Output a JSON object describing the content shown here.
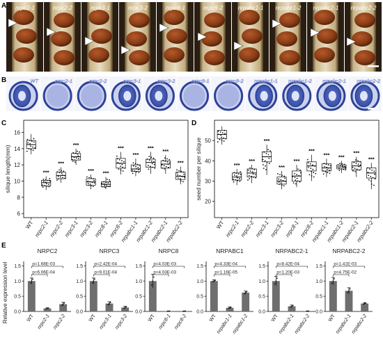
{
  "panel_labels": [
    "A",
    "B",
    "C",
    "D",
    "E"
  ],
  "panelA": {
    "labels": [
      "nrpc2-1",
      "nrpc2-2",
      "nrpc3-1",
      "nrpc3-2",
      "nrpc8-1",
      "nrpc8-2",
      "nrpabc1-1",
      "nrpabc1-2",
      "nrpabc2-1",
      "nrpabc2-2"
    ]
  },
  "panelB": {
    "labels": [
      "WT",
      "nrpc2-1",
      "nrpc2-2",
      "nrpc3-1",
      "nrpc3-2",
      "nrpc8-1",
      "nrpc8-2",
      "nrpabc1-1",
      "nrpabc1-2",
      "nrpabc2-1",
      "nrpabc2-2"
    ]
  },
  "chart_data": [
    {
      "panel": "C",
      "type": "box",
      "ylabel": "silique length(mm)",
      "ylim": [
        5.5,
        17.5
      ],
      "yticks": [
        6,
        8,
        10,
        12,
        14,
        16
      ],
      "categories": [
        "WT",
        "nrpc2-1",
        "nrpc2-2",
        "nrpc3-1",
        "nrpc3-2",
        "nrpc8-1",
        "nrpc8-2",
        "nrpabc1-1",
        "nrpabc1-2",
        "nrpabc2-1",
        "nrpabc2-2"
      ],
      "boxes": [
        {
          "min": 13.3,
          "q1": 14.0,
          "median": 14.5,
          "q3": 15.0,
          "max": 15.8
        },
        {
          "min": 8.9,
          "q1": 9.4,
          "median": 9.8,
          "q3": 10.1,
          "max": 10.6
        },
        {
          "min": 9.8,
          "q1": 10.3,
          "median": 10.7,
          "q3": 11.1,
          "max": 11.7
        },
        {
          "min": 12.0,
          "q1": 12.6,
          "median": 13.0,
          "q3": 13.4,
          "max": 14.0
        },
        {
          "min": 9.0,
          "q1": 9.5,
          "median": 9.9,
          "q3": 10.3,
          "max": 10.8
        },
        {
          "min": 9.0,
          "q1": 9.3,
          "median": 9.6,
          "q3": 9.9,
          "max": 10.5
        },
        {
          "min": 10.8,
          "q1": 11.6,
          "median": 12.2,
          "q3": 12.8,
          "max": 13.6
        },
        {
          "min": 10.6,
          "q1": 11.2,
          "median": 11.5,
          "q3": 12.0,
          "max": 12.8
        },
        {
          "min": 10.9,
          "q1": 11.7,
          "median": 12.3,
          "q3": 12.7,
          "max": 13.6
        },
        {
          "min": 10.9,
          "q1": 11.6,
          "median": 12.1,
          "q3": 12.5,
          "max": 13.2
        },
        {
          "min": 9.6,
          "q1": 10.2,
          "median": 10.6,
          "q3": 11.1,
          "max": 11.8
        }
      ],
      "significance": [
        "",
        "***",
        "***",
        "***",
        "***",
        "***",
        "***",
        "***",
        "***",
        "***",
        "***"
      ]
    },
    {
      "panel": "D",
      "type": "box",
      "ylabel": "seed number per silique",
      "ylim": [
        12,
        60
      ],
      "yticks": [
        20,
        30,
        40,
        50
      ],
      "categories": [
        "WT",
        "nrpc2-1",
        "nrpc2-2",
        "nrpc3-1",
        "nrpc3-2",
        "nrpc8-1",
        "nrpc8-2",
        "nrpabc1-1",
        "nrpabc1-2",
        "nrpabc2-1",
        "nrpabc2-2"
      ],
      "boxes": [
        {
          "min": 48,
          "q1": 51,
          "median": 53,
          "q3": 55,
          "max": 57
        },
        {
          "min": 28,
          "q1": 30.5,
          "median": 32,
          "q3": 34,
          "max": 36
        },
        {
          "min": 29,
          "q1": 32,
          "median": 34,
          "q3": 36,
          "max": 38
        },
        {
          "min": 33,
          "q1": 39.5,
          "median": 42,
          "q3": 44.5,
          "max": 48
        },
        {
          "min": 26,
          "q1": 28.5,
          "median": 30,
          "q3": 32,
          "max": 35
        },
        {
          "min": 27,
          "q1": 30,
          "median": 32.5,
          "q3": 35,
          "max": 38
        },
        {
          "min": 30,
          "q1": 35,
          "median": 37.5,
          "q3": 39.5,
          "max": 43
        },
        {
          "min": 32,
          "q1": 35,
          "median": 36.5,
          "q3": 38.5,
          "max": 41
        },
        {
          "min": 34,
          "q1": 36,
          "median": 37,
          "q3": 38,
          "max": 40
        },
        {
          "min": 32,
          "q1": 35.5,
          "median": 37.5,
          "q3": 39.5,
          "max": 42
        },
        {
          "min": 26,
          "q1": 31.5,
          "median": 34,
          "q3": 36.5,
          "max": 39
        }
      ],
      "significance": [
        "",
        "***",
        "***",
        "***",
        "***",
        "***",
        "***",
        "***",
        "***",
        "***",
        "***"
      ]
    },
    {
      "panel": "E",
      "type": "bar",
      "ylabel": "Relative expression level",
      "ylim": [
        0,
        1.6
      ],
      "yticks": [
        0,
        0.5,
        1.0,
        1.5
      ],
      "yticklabels": [
        "0.0",
        "0.5",
        "1.0",
        "1.5"
      ],
      "groups": [
        {
          "title": "NRPC2",
          "categories": [
            "WT",
            "nrpc2-1",
            "nrpc2-2"
          ],
          "values": [
            1.0,
            0.1,
            0.24
          ],
          "errors": [
            0.1,
            0.02,
            0.06
          ],
          "pvalues": [
            {
              "text": "p=1.68E-03",
              "to": 2
            },
            {
              "text": "p=6.06E-04",
              "to": 1
            }
          ]
        },
        {
          "title": "NRPC3",
          "categories": [
            "WT",
            "nrpc3-1",
            "nrpc3-2"
          ],
          "values": [
            1.0,
            0.26,
            0.13
          ],
          "errors": [
            0.1,
            0.06,
            0.04
          ],
          "pvalues": [
            {
              "text": "p=2.42E-04",
              "to": 2
            },
            {
              "text": "p=9.01E-04",
              "to": 1
            }
          ]
        },
        {
          "title": "NRPC8",
          "categories": [
            "WT",
            "nrpc8-1",
            "nrpc8-2"
          ],
          "values": [
            1.0,
            0.01,
            0.01
          ],
          "errors": [
            0.22,
            0.005,
            0.005
          ],
          "pvalues": [
            {
              "text": "p=4.03E-03",
              "to": 2
            },
            {
              "text": "p=4.03E-03",
              "to": 1
            }
          ]
        },
        {
          "title": "NRPABC1",
          "categories": [
            "WT",
            "nrpabc1-1",
            "nrpabc1-2"
          ],
          "values": [
            1.0,
            0.12,
            0.62
          ],
          "errors": [
            0.04,
            0.03,
            0.05
          ],
          "pvalues": [
            {
              "text": "p=4.33E-04",
              "to": 2
            },
            {
              "text": "p=1.16E-05",
              "to": 1
            }
          ]
        },
        {
          "title": "NRPABC2-1",
          "categories": [
            "WT",
            "nrpabc2-1",
            "nrpabc2-2"
          ],
          "values": [
            1.0,
            0.17,
            0.01
          ],
          "errors": [
            0.15,
            0.04,
            0.005
          ],
          "pvalues": [
            {
              "text": "p=8.42E-04",
              "to": 2
            },
            {
              "text": "p=1.20E-03",
              "to": 1
            }
          ]
        },
        {
          "title": "NRPABC2-2",
          "categories": [
            "WT",
            "nrpabc2-1",
            "nrpabc2-2"
          ],
          "values": [
            1.0,
            0.68,
            0.26
          ],
          "errors": [
            0.12,
            0.1,
            0.03
          ],
          "pvalues": [
            {
              "text": "p=1.41E-03",
              "to": 2
            },
            {
              "text": "p=4.75E-02",
              "to": 1
            }
          ]
        }
      ]
    }
  ],
  "colors": {
    "photoA_bg": "#2a1e12",
    "seed": "#8a3d16",
    "sectionB_bg": "#3c51ad",
    "bar": "#6e6e6e",
    "box_fill": "#ffffff"
  }
}
